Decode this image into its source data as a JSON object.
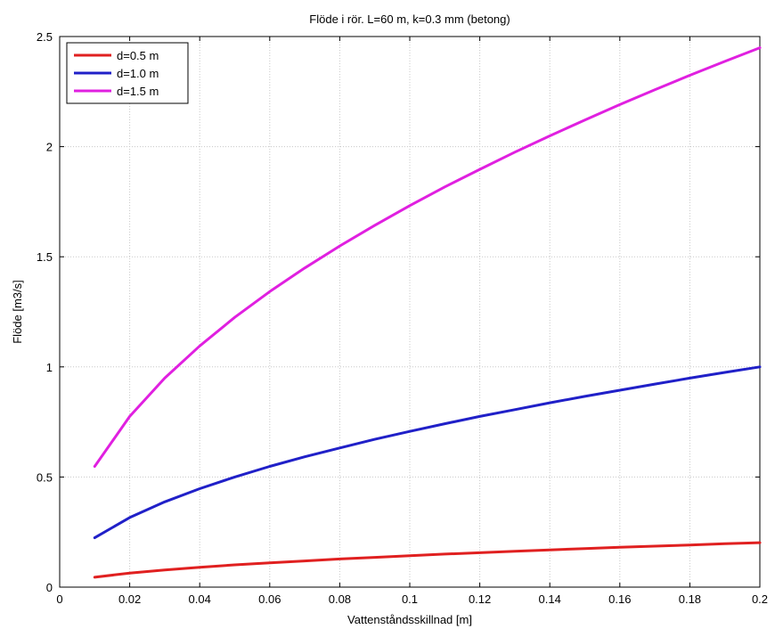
{
  "chart_data": {
    "type": "line",
    "title": "Flöde i rör. L=60 m, k=0.3 mm (betong)",
    "xlabel": "Vattenståndsskillnad [m]",
    "ylabel": "Flöde [m3/s]",
    "xlim": [
      0,
      0.2
    ],
    "ylim": [
      0,
      2.5
    ],
    "grid": true,
    "legend_position": "top-left",
    "x_ticks": [
      0,
      0.02,
      0.04,
      0.06,
      0.08,
      0.1,
      0.12,
      0.14,
      0.16,
      0.18,
      0.2
    ],
    "x_tick_labels": [
      "0",
      "0.02",
      "0.04",
      "0.06",
      "0.08",
      "0.1",
      "0.12",
      "0.14",
      "0.16",
      "0.18",
      "0.2"
    ],
    "y_ticks": [
      0,
      0.5,
      1,
      1.5,
      2,
      2.5
    ],
    "y_tick_labels": [
      "0",
      "0.5",
      "1",
      "1.5",
      "2",
      "2.5"
    ],
    "x": [
      0.01,
      0.02,
      0.03,
      0.04,
      0.05,
      0.06,
      0.07,
      0.08,
      0.09,
      0.1,
      0.11,
      0.12,
      0.13,
      0.14,
      0.15,
      0.16,
      0.17,
      0.18,
      0.19,
      0.2
    ],
    "series": [
      {
        "name": "d=0.5 m",
        "color": "#e02020",
        "values": [
          0.045,
          0.064,
          0.078,
          0.09,
          0.101,
          0.11,
          0.119,
          0.128,
          0.135,
          0.143,
          0.15,
          0.156,
          0.163,
          0.169,
          0.175,
          0.181,
          0.186,
          0.191,
          0.197,
          0.202
        ]
      },
      {
        "name": "d=1.0 m",
        "color": "#2020c8",
        "values": [
          0.224,
          0.316,
          0.387,
          0.447,
          0.5,
          0.548,
          0.592,
          0.632,
          0.671,
          0.707,
          0.742,
          0.775,
          0.806,
          0.837,
          0.866,
          0.894,
          0.922,
          0.949,
          0.975,
          1.0
        ]
      },
      {
        "name": "d=1.5 m",
        "color": "#e020e0",
        "values": [
          0.548,
          0.775,
          0.949,
          1.095,
          1.225,
          1.342,
          1.449,
          1.549,
          1.643,
          1.732,
          1.817,
          1.897,
          1.975,
          2.049,
          2.121,
          2.191,
          2.258,
          2.324,
          2.387,
          2.449
        ]
      }
    ]
  }
}
